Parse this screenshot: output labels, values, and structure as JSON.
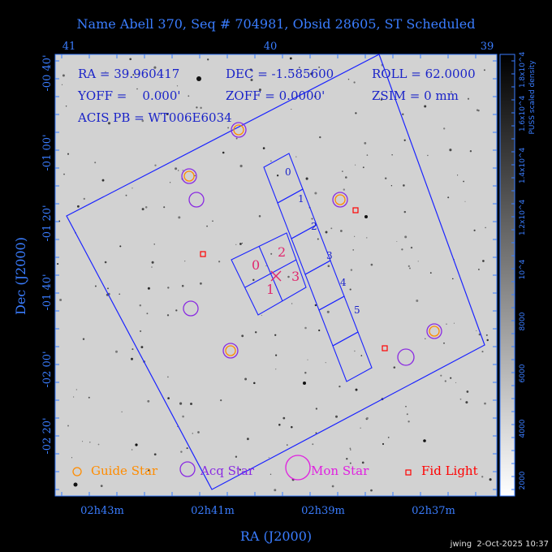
{
  "title": "Name Abell 370, Seq # 704981, Obsid 28605, ST Scheduled",
  "info": {
    "line1": [
      "RA = 39.960417",
      "DEC = -1.585600",
      "ROLL = 62.0000"
    ],
    "line2": [
      "YOFF =    0.000'",
      "ZOFF = 0.0000'",
      "ZSIM = 0 mm"
    ],
    "line3": "ACIS PB = WT006E6034"
  },
  "axes": {
    "xlabel": "RA (J2000)",
    "ylabel": "Dec (J2000)",
    "top_ticks": [
      "41",
      "40",
      "39"
    ],
    "bottom_ticks": [
      "02h43m",
      "02h41m",
      "02h39m",
      "02h37m"
    ],
    "left_ticks": [
      "-00 40'",
      "-01 00'",
      "-01 20'",
      "-01 40'",
      "-02 00'",
      "-02 20'"
    ]
  },
  "colorbar": {
    "label": "PUSS scaled density",
    "ticks": [
      "2000",
      "4000",
      "6000",
      "8000",
      "10^4",
      "1.2x10^4",
      "1.4x10^4",
      "1.6x10^4",
      "1.8x10^4"
    ]
  },
  "ccds": {
    "imaging": [
      "0",
      "1",
      "2",
      "3"
    ],
    "spectroscopic": [
      "0",
      "1",
      "2",
      "3",
      "4",
      "5"
    ]
  },
  "legend": [
    "Guide Star",
    "Acq Star",
    "Mon Star",
    "Fid Light"
  ],
  "colors": {
    "guide": "#ff8c00",
    "acq": "#8a2be2",
    "mon": "#e020e0",
    "fid": "#ff0000",
    "outline": "#1a23ff",
    "axis": "#3a7dff",
    "imaging_label": "#e0286e"
  },
  "footer": "jwing  2-Oct-2025 10:37"
}
